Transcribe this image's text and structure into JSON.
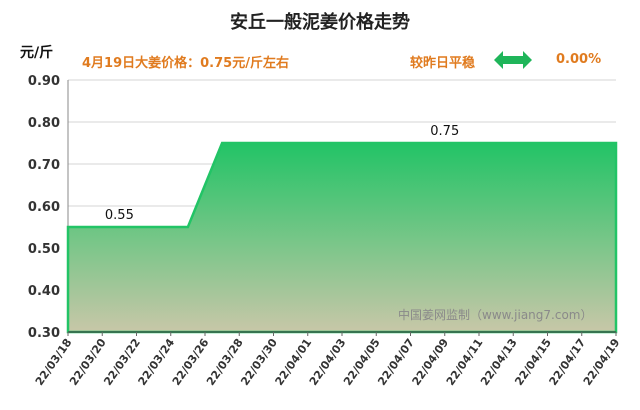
{
  "header": {
    "title": "安丘一般泥姜价格走势",
    "unit": "元/斤",
    "price_info": "4月19日大姜价格：0.75元/斤左右",
    "trend_label": "较昨日平稳",
    "change": "0.00%"
  },
  "watermark": "中国姜网监制（www.jiang7.com）",
  "colors": {
    "line": "#22c466",
    "fill_top": "#22c466",
    "fill_bottom": "#c8c7a8",
    "accent": "#e07b1f",
    "icon": "#1fb55a"
  },
  "chart_data": {
    "type": "area",
    "title": "安丘一般泥姜价格走势",
    "ylabel": "元/斤",
    "ylim": [
      0.3,
      0.9
    ],
    "yticks": [
      "0.30",
      "0.40",
      "0.50",
      "0.60",
      "0.70",
      "0.80",
      "0.90"
    ],
    "x_tick_labels": [
      "22/03/18",
      "22/03/20",
      "22/03/22",
      "22/03/24",
      "22/03/26",
      "22/03/28",
      "22/03/30",
      "22/04/01",
      "22/04/03",
      "22/04/05",
      "22/04/07",
      "22/04/09",
      "22/04/11",
      "22/04/13",
      "22/04/15",
      "22/04/17",
      "22/04/19"
    ],
    "x": [
      "22/03/18",
      "22/03/19",
      "22/03/20",
      "22/03/21",
      "22/03/22",
      "22/03/23",
      "22/03/24",
      "22/03/25",
      "22/03/26",
      "22/03/27",
      "22/03/28",
      "22/03/29",
      "22/03/30",
      "22/03/31",
      "22/04/01",
      "22/04/02",
      "22/04/03",
      "22/04/04",
      "22/04/05",
      "22/04/06",
      "22/04/07",
      "22/04/08",
      "22/04/09",
      "22/04/10",
      "22/04/11",
      "22/04/12",
      "22/04/13",
      "22/04/14",
      "22/04/15",
      "22/04/16",
      "22/04/17",
      "22/04/18",
      "22/04/19"
    ],
    "series": [
      {
        "values": [
          0.55,
          0.55,
          0.55,
          0.55,
          0.55,
          0.55,
          0.55,
          0.55,
          0.65,
          0.75,
          0.75,
          0.75,
          0.75,
          0.75,
          0.75,
          0.75,
          0.75,
          0.75,
          0.75,
          0.75,
          0.75,
          0.75,
          0.75,
          0.75,
          0.75,
          0.75,
          0.75,
          0.75,
          0.75,
          0.75,
          0.75,
          0.75,
          0.75
        ]
      }
    ],
    "data_labels": [
      {
        "x": "22/03/21",
        "text": "0.55"
      },
      {
        "x": "22/04/09",
        "text": "0.75"
      }
    ],
    "grid": true
  }
}
